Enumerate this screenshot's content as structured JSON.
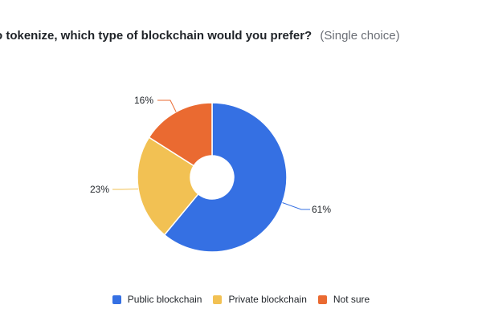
{
  "question": {
    "text": "o tokenize, which type of blockchain would you prefer?",
    "note": "(Single choice)"
  },
  "chart_data": {
    "type": "pie",
    "categories": [
      "Public blockchain",
      "Private blockchain",
      "Not sure"
    ],
    "values": [
      61,
      23,
      16
    ],
    "labels": [
      "61%",
      "23%",
      "16%"
    ],
    "colors": [
      "#3570e3",
      "#f2c153",
      "#ea6a31"
    ],
    "donut": true,
    "legend_position": "bottom"
  }
}
